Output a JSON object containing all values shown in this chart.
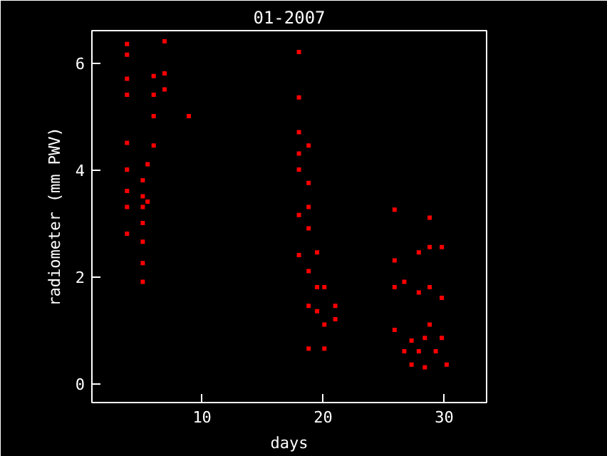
{
  "chart_data": {
    "type": "scatter",
    "title": "01-2007",
    "xlabel": "days",
    "ylabel": "radiometer (mm PWV)",
    "xlim": [
      0.9,
      33.5
    ],
    "ylim": [
      -0.36,
      6.6
    ],
    "xticks": [
      10,
      20,
      30
    ],
    "yticks": [
      0,
      2,
      4,
      6
    ],
    "grid": false,
    "marker": "square",
    "series": [
      {
        "color": "#ff0000",
        "x": [
          3.8,
          3.8,
          3.8,
          3.8,
          3.8,
          3.8,
          3.8,
          3.8,
          3.8,
          5.1,
          5.1,
          5.1,
          5.1,
          5.1,
          5.1,
          5.1,
          5.5,
          5.5,
          6.0,
          6.0,
          6.0,
          6.0,
          6.9,
          6.9,
          6.9,
          8.9,
          18.0,
          18.0,
          18.0,
          18.0,
          18.0,
          18.0,
          18.0,
          18.8,
          18.8,
          18.8,
          18.8,
          18.8,
          18.8,
          18.8,
          19.5,
          19.5,
          19.5,
          20.1,
          20.1,
          20.1,
          21.0,
          21.0,
          25.9,
          25.9,
          25.9,
          25.9,
          26.7,
          26.7,
          27.3,
          27.3,
          27.9,
          27.9,
          27.9,
          28.4,
          28.4,
          28.8,
          28.8,
          28.8,
          28.8,
          29.3,
          29.8,
          29.8,
          29.8,
          30.2
        ],
        "values": [
          6.35,
          6.15,
          5.7,
          5.4,
          4.5,
          4.0,
          3.6,
          3.3,
          2.8,
          3.8,
          3.5,
          3.3,
          3.0,
          2.65,
          2.25,
          1.9,
          4.1,
          3.4,
          5.75,
          5.4,
          5.0,
          4.45,
          6.4,
          5.8,
          5.5,
          5.0,
          6.2,
          5.35,
          4.7,
          4.3,
          4.0,
          3.15,
          2.4,
          4.45,
          3.75,
          3.3,
          2.9,
          2.1,
          1.45,
          0.65,
          2.45,
          1.8,
          1.35,
          1.8,
          1.1,
          0.65,
          1.45,
          1.2,
          3.25,
          2.3,
          1.8,
          1.0,
          1.9,
          0.6,
          0.35,
          0.8,
          2.45,
          1.7,
          0.6,
          0.3,
          0.85,
          3.1,
          2.55,
          1.8,
          1.1,
          0.6,
          2.55,
          1.6,
          0.85,
          0.35
        ]
      }
    ]
  }
}
